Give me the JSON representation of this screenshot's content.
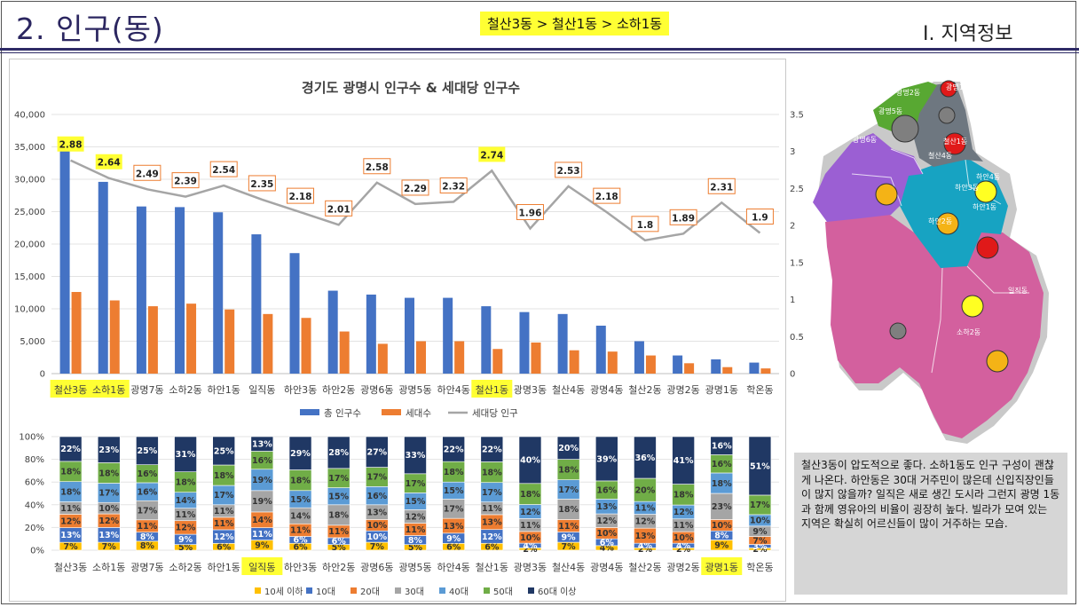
{
  "header": {
    "title": "2. 인구(동)",
    "path_badge": "철산3동 > 철산1동 > 소하1동",
    "section": "Ⅰ. 지역정보"
  },
  "colors": {
    "total": "#4472c4",
    "households": "#ed7d31",
    "per_household": "#a5a5a5",
    "highlight": "#ffff33",
    "age": [
      "#ffc000",
      "#4472c4",
      "#ed7d31",
      "#a5a5a5",
      "#5b9bd5",
      "#70ad47",
      "#203864"
    ]
  },
  "chart_data": [
    {
      "type": "bar",
      "title": "경기도 광명시 인구수 & 세대당 인구수",
      "categories": [
        "철산3동",
        "소하1동",
        "광명7동",
        "소하2동",
        "하안1동",
        "일직동",
        "하안3동",
        "하안2동",
        "광명6동",
        "광명5동",
        "하안4동",
        "철산1동",
        "광명3동",
        "철산4동",
        "광명4동",
        "철산2동",
        "광명2동",
        "광명1동",
        "학온동"
      ],
      "highlighted_categories": [
        "철산3동",
        "소하1동",
        "철산1동"
      ],
      "highlighted_labels": [
        "2.88",
        "2.64",
        "2.74"
      ],
      "series": [
        {
          "name": "총 인구수",
          "type": "bar",
          "axis": "left",
          "values": [
            34800,
            29600,
            25800,
            25700,
            24900,
            21500,
            18600,
            12800,
            12200,
            11700,
            11700,
            10400,
            9500,
            9200,
            7400,
            5000,
            2800,
            2200,
            1700
          ]
        },
        {
          "name": "세대수",
          "type": "bar",
          "axis": "left",
          "values": [
            12600,
            11300,
            10400,
            10800,
            9900,
            9200,
            8600,
            6500,
            4600,
            5000,
            5000,
            3800,
            4800,
            3600,
            3400,
            2800,
            1600,
            1000,
            800
          ]
        },
        {
          "name": "세대당 인구",
          "type": "line",
          "axis": "right",
          "values": [
            2.88,
            2.64,
            2.49,
            2.39,
            2.54,
            2.35,
            2.18,
            2.01,
            2.58,
            2.29,
            2.32,
            2.74,
            1.96,
            2.53,
            2.18,
            1.8,
            1.89,
            2.31,
            1.9
          ]
        }
      ],
      "y_left": {
        "min": 0,
        "max": 40000,
        "ticks": [
          "0",
          "5,000",
          "10,000",
          "15,000",
          "20,000",
          "25,000",
          "30,000",
          "35,000",
          "40,000"
        ]
      },
      "y_right": {
        "min": 0,
        "max": 3.5,
        "ticks": [
          "0",
          "0.5",
          "1",
          "1.5",
          "2",
          "2.5",
          "3",
          "3.5"
        ]
      },
      "grid": true,
      "legend": "bottom"
    },
    {
      "type": "bar",
      "stacked": "percent",
      "categories": [
        "철산3동",
        "소하1동",
        "광명7동",
        "소하2동",
        "하안1동",
        "일직동",
        "하안3동",
        "하안2동",
        "광명6동",
        "광명5동",
        "하안4동",
        "철산1동",
        "광명3동",
        "철산4동",
        "광명4동",
        "철산2동",
        "광명2동",
        "광명1동",
        "학온동"
      ],
      "highlighted_categories": [
        "일직동",
        "광명1동"
      ],
      "series": [
        {
          "name": "10세 이하",
          "values": [
            7,
            7,
            8,
            5,
            6,
            9,
            6,
            5,
            7,
            5,
            6,
            6,
            2,
            7,
            4,
            2,
            2,
            9,
            2
          ]
        },
        {
          "name": "10대",
          "values": [
            13,
            13,
            8,
            9,
            12,
            11,
            6,
            6,
            10,
            8,
            9,
            12,
            4,
            9,
            6,
            4,
            4,
            8,
            3
          ]
        },
        {
          "name": "20대",
          "values": [
            12,
            12,
            11,
            12,
            11,
            14,
            11,
            11,
            10,
            11,
            13,
            13,
            10,
            11,
            10,
            13,
            10,
            10,
            7
          ]
        },
        {
          "name": "30대",
          "values": [
            11,
            10,
            17,
            11,
            11,
            19,
            14,
            18,
            13,
            12,
            17,
            11,
            11,
            18,
            12,
            12,
            11,
            23,
            9
          ]
        },
        {
          "name": "40대",
          "values": [
            18,
            17,
            16,
            14,
            17,
            19,
            15,
            15,
            16,
            15,
            15,
            17,
            12,
            17,
            13,
            11,
            12,
            18,
            10
          ]
        },
        {
          "name": "50대",
          "values": [
            18,
            18,
            16,
            18,
            18,
            16,
            18,
            17,
            17,
            17,
            18,
            18,
            18,
            18,
            16,
            20,
            18,
            16,
            17
          ]
        },
        {
          "name": "60대 이상",
          "values": [
            22,
            23,
            25,
            31,
            25,
            13,
            29,
            28,
            27,
            33,
            22,
            22,
            40,
            20,
            39,
            36,
            41,
            16,
            51
          ]
        }
      ],
      "y": {
        "min": 0,
        "max": 100,
        "ticks": [
          "0%",
          "20%",
          "40%",
          "60%",
          "80%",
          "100%"
        ]
      },
      "legend": "bottom"
    }
  ],
  "map": {
    "labels": [
      "광명1동",
      "광명2동",
      "광명5동",
      "광명6동",
      "철산1동",
      "철산4동",
      "하안4동",
      "하안3동",
      "하안2동",
      "일직동",
      "소하2동",
      "하안1동"
    ]
  },
  "note": {
    "text": "철산3동이 압도적으로 좋다. 소하1동도 인구 구성이 괜찮게 나온다. 하안동은 30대 거주민이 많은데 신입직장인들이 많지 않을까? 일직은 새로 생긴 도시라 그런지 광명 1동과 함께 영유아의 비율이 굉장히 높다. 빌라가 모여 있는 지역은 확실히 어르신들이 많이 거주하는 모습."
  }
}
